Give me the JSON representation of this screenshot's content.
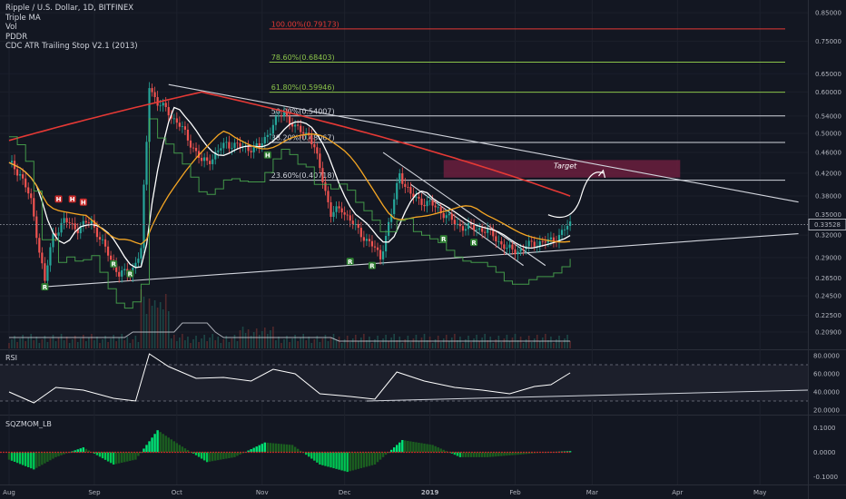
{
  "legend": {
    "title": "Ripple / U.S. Dollar, 1D, BITFINEX",
    "lines": [
      "Triple MA",
      "Vol",
      "PDDR",
      "CDC ATR Trailing Stop V2.1 (2013)"
    ]
  },
  "panes": {
    "rsi_label": "RSI",
    "sqz_label": "SQZMOM_LB"
  },
  "last_price": "0.33528",
  "target_label": "Target",
  "colors": {
    "up": "#26a69a",
    "down": "#ef5350",
    "bg": "#131722",
    "ma_white": "#ffffff",
    "ma_orange": "#f5a623",
    "ma_red": "#e53935",
    "fib_green": "#8bc34a",
    "fib_red": "#e53935",
    "target_zone": "#6b1f3d"
  },
  "chart_data": {
    "type": "line",
    "title": "Ripple / U.S. Dollar, 1D, BITFINEX",
    "x_ticks": [
      "Aug",
      "Sep",
      "Oct",
      "Nov",
      "Dec",
      "2019",
      "Feb",
      "Mar",
      "Apr",
      "May"
    ],
    "price_axis": {
      "scale": "log",
      "ticks": [
        "0.85000",
        "0.75000",
        "0.65000",
        "0.60000",
        "0.54000",
        "0.50000",
        "0.46000",
        "0.42000",
        "0.38000",
        "0.35000",
        "0.32000",
        "0.29000",
        "0.26500",
        "0.24500",
        "0.22500",
        "0.20900"
      ]
    },
    "fib_levels": [
      {
        "label": "100.00%(0.79173)",
        "value": 0.79173,
        "color": "red"
      },
      {
        "label": "78.60%(0.68403)",
        "value": 0.68403,
        "color": "green"
      },
      {
        "label": "61.80%(0.59946)",
        "value": 0.59946,
        "color": "green"
      },
      {
        "label": "50.00%(0.54007)",
        "value": 0.54007,
        "color": "white"
      },
      {
        "label": "38.20%(0.48067)",
        "value": 0.48067,
        "color": "white"
      },
      {
        "label": "23.60%(0.40718)",
        "value": 0.40718,
        "color": "white"
      }
    ],
    "price_series": [
      [
        "Aug 1",
        0.44
      ],
      [
        "Aug 5",
        0.42
      ],
      [
        "Aug 9",
        0.37
      ],
      [
        "Aug 12",
        0.3
      ],
      [
        "Aug 14",
        0.26
      ],
      [
        "Aug 17",
        0.32
      ],
      [
        "Aug 21",
        0.34
      ],
      [
        "Aug 26",
        0.33
      ],
      [
        "Aug 31",
        0.34
      ],
      [
        "Sep 5",
        0.3
      ],
      [
        "Sep 10",
        0.27
      ],
      [
        "Sep 14",
        0.27
      ],
      [
        "Sep 18",
        0.3
      ],
      [
        "Sep 20",
        0.48
      ],
      [
        "Sep 21",
        0.62
      ],
      [
        "Sep 24",
        0.57
      ],
      [
        "Sep 28",
        0.55
      ],
      [
        "Oct 4",
        0.5
      ],
      [
        "Oct 10",
        0.44
      ],
      [
        "Oct 14",
        0.45
      ],
      [
        "Oct 19",
        0.48
      ],
      [
        "Oct 25",
        0.47
      ],
      [
        "Oct 31",
        0.47
      ],
      [
        "Nov 5",
        0.52
      ],
      [
        "Nov 9",
        0.55
      ],
      [
        "Nov 13",
        0.51
      ],
      [
        "Nov 18",
        0.5
      ],
      [
        "Nov 22",
        0.43
      ],
      [
        "Nov 26",
        0.35
      ],
      [
        "Nov 30",
        0.36
      ],
      [
        "Dec 5",
        0.33
      ],
      [
        "Dec 10",
        0.31
      ],
      [
        "Dec 14",
        0.29
      ],
      [
        "Dec 18",
        0.35
      ],
      [
        "Dec 21",
        0.42
      ],
      [
        "Dec 25",
        0.38
      ],
      [
        "Dec 30",
        0.37
      ],
      [
        "Jan 4",
        0.36
      ],
      [
        "Jan 9",
        0.34
      ],
      [
        "Jan 14",
        0.33
      ],
      [
        "Jan 19",
        0.33
      ],
      [
        "Jan 24",
        0.32
      ],
      [
        "Jan 29",
        0.3
      ],
      [
        "Feb 3",
        0.3
      ],
      [
        "Feb 8",
        0.31
      ],
      [
        "Feb 13",
        0.31
      ],
      [
        "Feb 17",
        0.32
      ],
      [
        "Feb 21",
        0.33528
      ]
    ],
    "rsi_axis": {
      "ticks": [
        "80.0000",
        "60.0000",
        "40.0000",
        "20.0000"
      ]
    },
    "rsi_series": [
      [
        "Aug 1",
        40
      ],
      [
        "Aug 10",
        28
      ],
      [
        "Aug 18",
        45
      ],
      [
        "Aug 28",
        42
      ],
      [
        "Sep 8",
        33
      ],
      [
        "Sep 16",
        30
      ],
      [
        "Sep 21",
        82
      ],
      [
        "Sep 28",
        68
      ],
      [
        "Oct 8",
        55
      ],
      [
        "Oct 18",
        56
      ],
      [
        "Oct 28",
        52
      ],
      [
        "Nov 5",
        65
      ],
      [
        "Nov 13",
        60
      ],
      [
        "Nov 22",
        38
      ],
      [
        "Dec 3",
        35
      ],
      [
        "Dec 12",
        32
      ],
      [
        "Dec 20",
        62
      ],
      [
        "Dec 30",
        52
      ],
      [
        "Jan 10",
        45
      ],
      [
        "Jan 20",
        42
      ],
      [
        "Jan 30",
        38
      ],
      [
        "Feb 8",
        46
      ],
      [
        "Feb 14",
        48
      ],
      [
        "Feb 21",
        61
      ]
    ],
    "sqz_axis": {
      "ticks": [
        "0.1000",
        "0.0000",
        "-0.1000"
      ]
    },
    "sqz_series": [
      [
        "Aug 1",
        -0.03
      ],
      [
        "Aug 10",
        -0.07
      ],
      [
        "Aug 18",
        -0.02
      ],
      [
        "Aug 28",
        0.02
      ],
      [
        "Sep 8",
        -0.05
      ],
      [
        "Sep 16",
        -0.03
      ],
      [
        "Sep 24",
        0.09
      ],
      [
        "Oct 2",
        0.03
      ],
      [
        "Oct 12",
        -0.04
      ],
      [
        "Oct 22",
        -0.02
      ],
      [
        "Nov 2",
        0.04
      ],
      [
        "Nov 12",
        0.03
      ],
      [
        "Nov 22",
        -0.05
      ],
      [
        "Dec 2",
        -0.08
      ],
      [
        "Dec 12",
        -0.05
      ],
      [
        "Dec 22",
        0.05
      ],
      [
        "Jan 2",
        0.03
      ],
      [
        "Jan 12",
        -0.02
      ],
      [
        "Jan 22",
        -0.02
      ],
      [
        "Feb 2",
        -0.01
      ],
      [
        "Feb 12",
        0.0
      ],
      [
        "Feb 21",
        0.005
      ]
    ]
  }
}
